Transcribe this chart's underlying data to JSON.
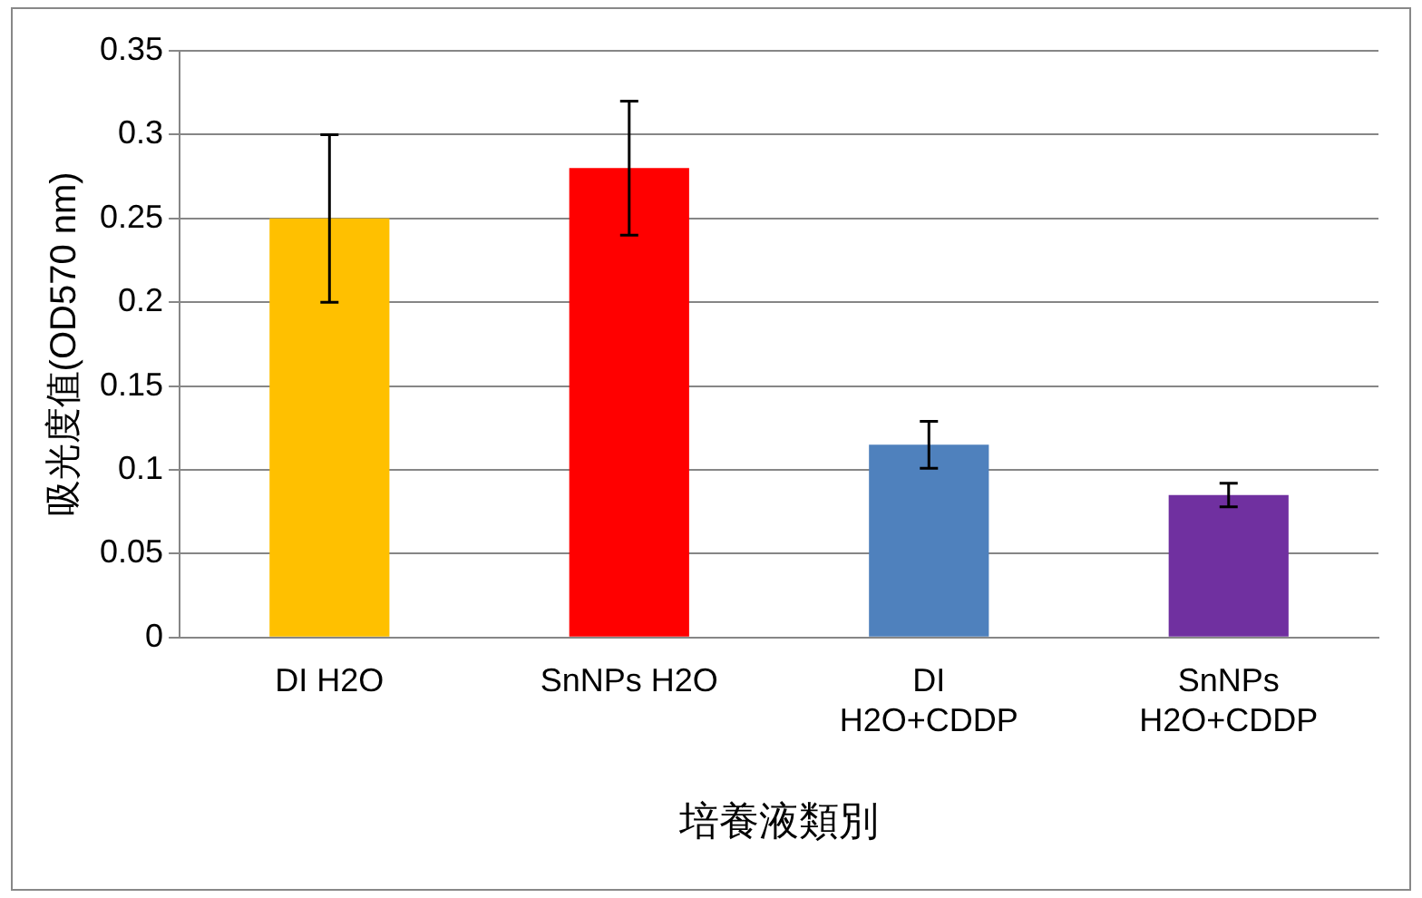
{
  "chart_data": {
    "type": "bar",
    "xlabel": "培養液類別",
    "ylabel": "吸光度值(OD570 nm)",
    "categories": [
      "DI H2O",
      "SnNPs H2O",
      "DI H2O+CDDP",
      "SnNPs H2O+CDDP"
    ],
    "values": [
      0.25,
      0.28,
      0.115,
      0.085
    ],
    "colors": [
      "#ffc000",
      "#ff0000",
      "#4f81bd",
      "#7030a0"
    ],
    "errors": [
      0.05,
      0.04,
      0.014,
      0.007
    ],
    "ylim": [
      0,
      0.35
    ],
    "yticks": [
      0,
      0.05,
      0.1,
      0.15,
      0.2,
      0.25,
      0.3,
      0.35
    ],
    "grid": "y",
    "legend": false
  }
}
